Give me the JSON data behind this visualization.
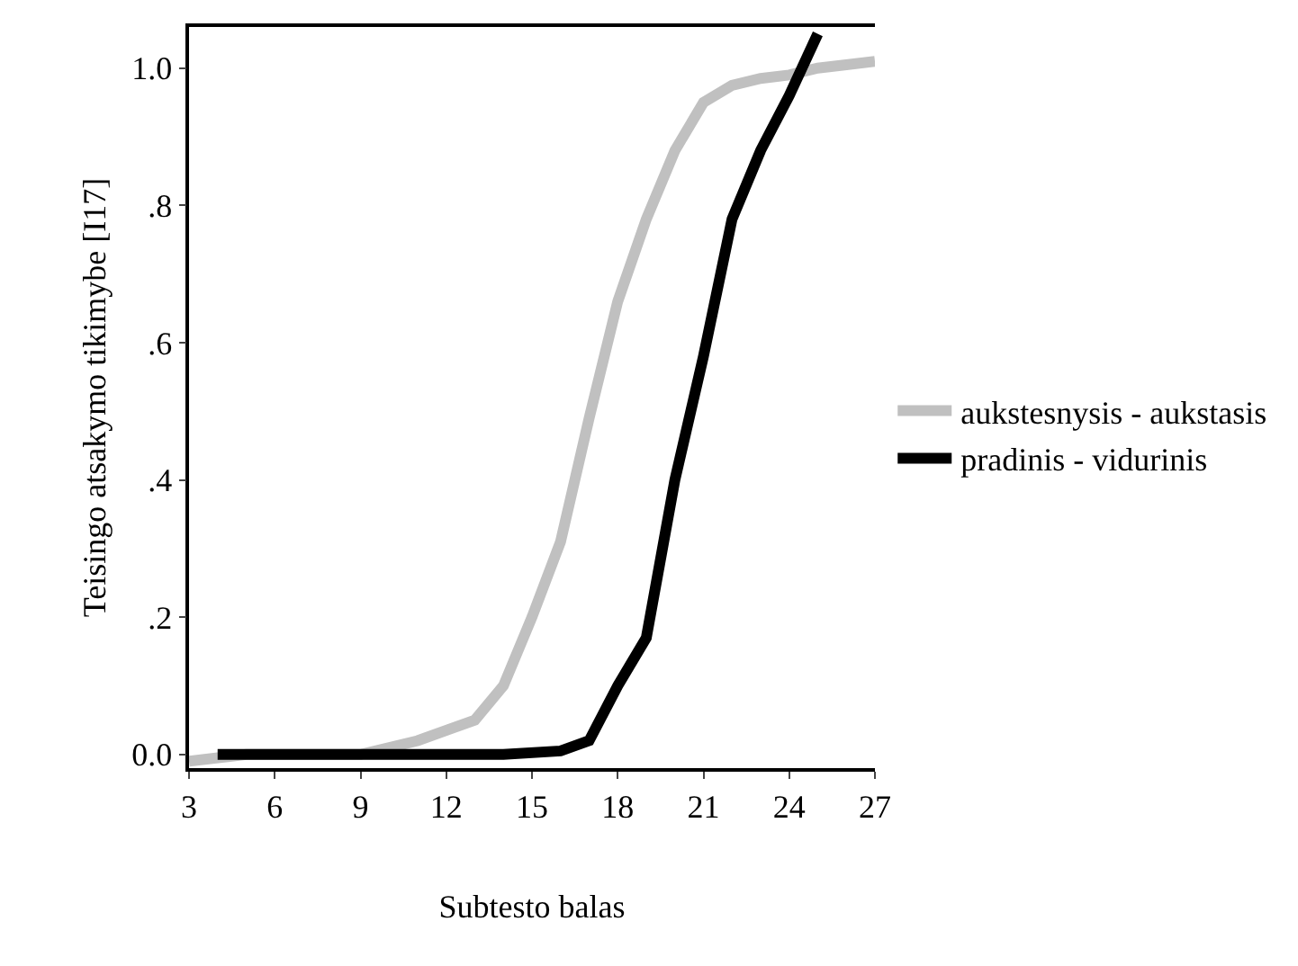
{
  "chart_data": {
    "type": "line",
    "xlabel": "Subtesto balas",
    "ylabel": "Teisingo atsakymo tikimybe [I17]",
    "xlim": [
      3,
      27
    ],
    "xticks": [
      3,
      6,
      9,
      12,
      15,
      18,
      21,
      24,
      27
    ],
    "ylim": [
      -0.02,
      1.06
    ],
    "yticks": [
      {
        "value": 0,
        "label": "0.0"
      },
      {
        "value": 0.2,
        "label": ".2"
      },
      {
        "value": 0.4,
        "label": ".4"
      },
      {
        "value": 0.6,
        "label": ".6"
      },
      {
        "value": 0.8,
        "label": ".8"
      },
      {
        "value": 1,
        "label": "1.0"
      }
    ],
    "grid": false,
    "legend": "right",
    "marker": "none",
    "line_style": "solid",
    "series": [
      {
        "name": "aukstesnysis - aukstasis",
        "color": "#c0c0c0",
        "x": [
          3,
          5,
          7,
          9,
          11,
          13,
          14,
          15,
          16,
          17,
          18,
          19,
          20,
          21,
          22,
          23,
          24,
          25,
          26,
          27
        ],
        "values": [
          -0.01,
          0,
          0,
          0,
          0.02,
          0.05,
          0.1,
          0.2,
          0.31,
          0.49,
          0.66,
          0.78,
          0.88,
          0.95,
          0.975,
          0.985,
          0.99,
          1.0,
          1.005,
          1.01
        ]
      },
      {
        "name": "pradinis - vidurinis",
        "color": "#000000",
        "x": [
          4,
          6,
          8,
          10,
          12,
          14,
          16,
          17,
          18,
          19,
          20,
          21,
          22,
          23,
          24,
          25
        ],
        "values": [
          0,
          0,
          0,
          0,
          0,
          0,
          0.005,
          0.02,
          0.1,
          0.17,
          0.4,
          0.58,
          0.78,
          0.88,
          0.96,
          1.05
        ]
      }
    ]
  }
}
